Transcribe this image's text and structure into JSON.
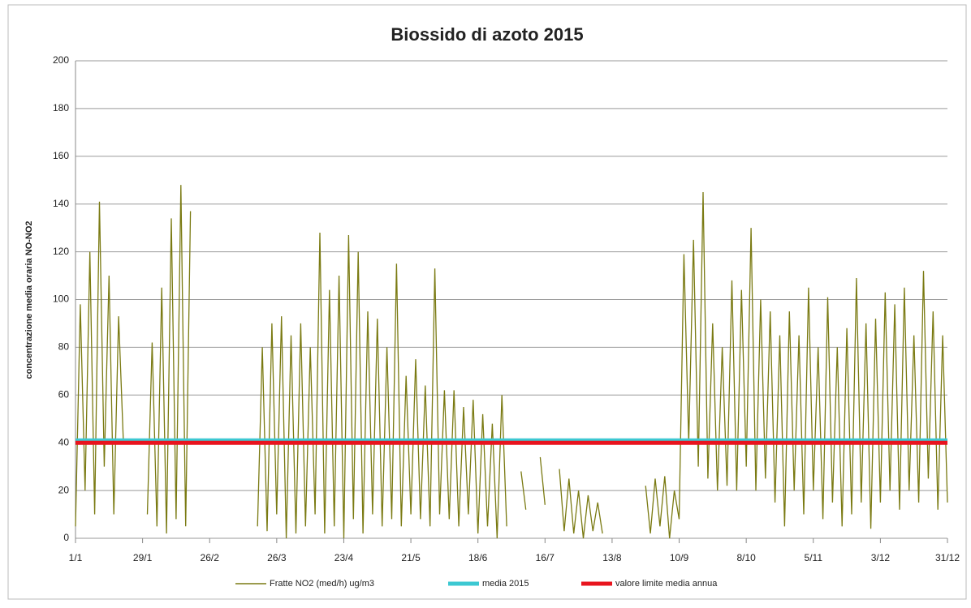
{
  "chart_data": {
    "type": "line",
    "title": "Biossido di azoto 2015",
    "y_label": "concentrazione media oraria NO-NO2",
    "xlim": [
      0,
      364
    ],
    "xticks": [
      {
        "value": 0,
        "label": "1/1"
      },
      {
        "value": 28,
        "label": "29/1"
      },
      {
        "value": 56,
        "label": "26/2"
      },
      {
        "value": 84,
        "label": "26/3"
      },
      {
        "value": 112,
        "label": "23/4"
      },
      {
        "value": 140,
        "label": "21/5"
      },
      {
        "value": 168,
        "label": "18/6"
      },
      {
        "value": 196,
        "label": "16/7"
      },
      {
        "value": 224,
        "label": "13/8"
      },
      {
        "value": 252,
        "label": "10/9"
      },
      {
        "value": 280,
        "label": "8/10"
      },
      {
        "value": 308,
        "label": "5/11"
      },
      {
        "value": 336,
        "label": "3/12"
      },
      {
        "value": 364,
        "label": "31/12"
      }
    ],
    "ylim": [
      0,
      200
    ],
    "yticks": [
      0,
      20,
      40,
      60,
      80,
      100,
      120,
      140,
      160,
      180,
      200
    ],
    "grid": true,
    "x": [
      0,
      2,
      4,
      6,
      8,
      10,
      12,
      14,
      16,
      18,
      20,
      22,
      24,
      26,
      28,
      30,
      32,
      34,
      36,
      38,
      40,
      42,
      44,
      46,
      48,
      50,
      52,
      54,
      56,
      58,
      60,
      62,
      64,
      66,
      68,
      70,
      72,
      74,
      76,
      78,
      80,
      82,
      84,
      86,
      88,
      90,
      92,
      94,
      96,
      98,
      100,
      102,
      104,
      106,
      108,
      110,
      112,
      114,
      116,
      118,
      120,
      122,
      124,
      126,
      128,
      130,
      132,
      134,
      136,
      138,
      140,
      142,
      144,
      146,
      148,
      150,
      152,
      154,
      156,
      158,
      160,
      162,
      164,
      166,
      168,
      170,
      172,
      174,
      176,
      178,
      180,
      182,
      184,
      186,
      188,
      190,
      192,
      194,
      196,
      198,
      200,
      202,
      204,
      206,
      208,
      210,
      212,
      214,
      216,
      218,
      220,
      222,
      224,
      226,
      228,
      230,
      232,
      234,
      236,
      238,
      240,
      242,
      244,
      246,
      248,
      250,
      252,
      254,
      256,
      258,
      260,
      262,
      264,
      266,
      268,
      270,
      272,
      274,
      276,
      278,
      280,
      282,
      284,
      286,
      288,
      290,
      292,
      294,
      296,
      298,
      300,
      302,
      304,
      306,
      308,
      310,
      312,
      314,
      316,
      318,
      320,
      322,
      324,
      326,
      328,
      330,
      332,
      334,
      336,
      338,
      340,
      342,
      344,
      346,
      348,
      350,
      352,
      354,
      356,
      358,
      360,
      362,
      364
    ],
    "series": [
      {
        "name": "Fratte NO2 (med/h) ug/m3",
        "color": "#7a7a12",
        "values": [
          5,
          98,
          20,
          120,
          10,
          141,
          30,
          110,
          10,
          93,
          40,
          null,
          null,
          null,
          null,
          10,
          82,
          5,
          105,
          2,
          134,
          8,
          148,
          5,
          137,
          null,
          null,
          null,
          null,
          null,
          null,
          null,
          null,
          null,
          null,
          null,
          null,
          null,
          5,
          80,
          3,
          90,
          10,
          93,
          0,
          85,
          2,
          90,
          5,
          80,
          10,
          128,
          2,
          104,
          5,
          110,
          0,
          127,
          8,
          120,
          2,
          95,
          10,
          92,
          5,
          80,
          8,
          115,
          5,
          68,
          10,
          75,
          8,
          64,
          5,
          113,
          10,
          62,
          8,
          62,
          5,
          55,
          10,
          58,
          2,
          52,
          5,
          48,
          0,
          60,
          5,
          null,
          null,
          28,
          12,
          null,
          null,
          34,
          14,
          null,
          null,
          29,
          3,
          25,
          2,
          20,
          0,
          18,
          3,
          15,
          2,
          null,
          null,
          null,
          null,
          null,
          null,
          null,
          null,
          22,
          2,
          25,
          5,
          26,
          0,
          20,
          8,
          119,
          40,
          125,
          30,
          145,
          25,
          90,
          20,
          80,
          22,
          108,
          20,
          104,
          30,
          130,
          20,
          100,
          25,
          95,
          15,
          85,
          5,
          95,
          20,
          85,
          10,
          105,
          20,
          80,
          8,
          101,
          15,
          80,
          5,
          88,
          10,
          109,
          15,
          90,
          4,
          92,
          15,
          103,
          20,
          98,
          12,
          105,
          20,
          85,
          15,
          112,
          25,
          95,
          12,
          85,
          15
        ]
      },
      {
        "name": "media 2015",
        "color": "#3cc8d2",
        "level": 41
      },
      {
        "name": "valore limite media annua",
        "color": "#e8141e",
        "level": 40
      }
    ]
  }
}
